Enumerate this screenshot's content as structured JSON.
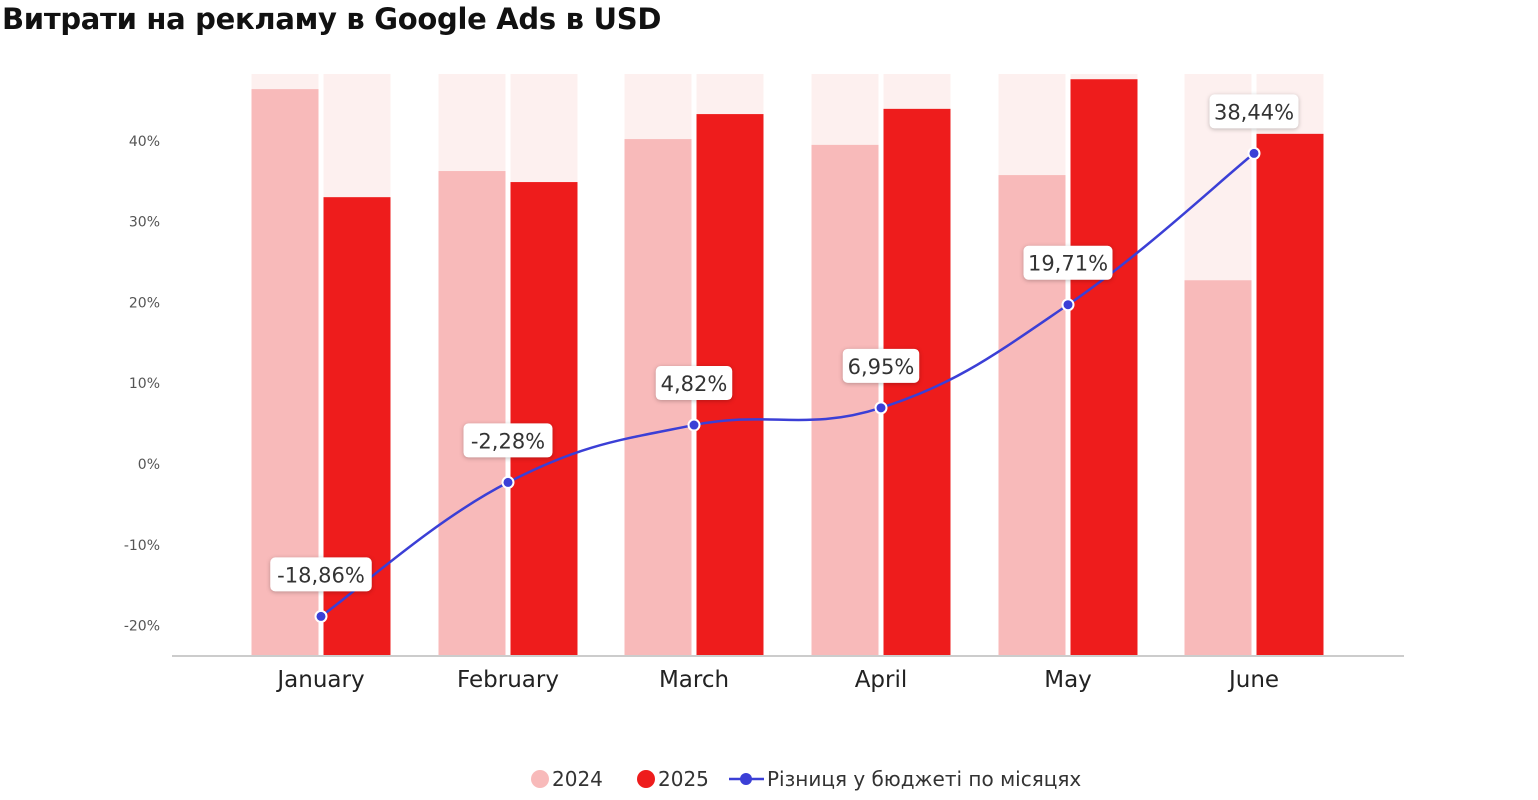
{
  "title": "Витрати на рекламу в Google Ads в USD",
  "chart_data": {
    "type": "bar",
    "title": "Витрати на рекламу в Google Ads в USD",
    "categories": [
      "January",
      "February",
      "March",
      "April",
      "May",
      "June"
    ],
    "series": [
      {
        "name": "2024",
        "type": "bar",
        "color": "#f8baba",
        "relative_values": [
          0.974,
          0.833,
          0.888,
          0.878,
          0.826,
          0.645
        ]
      },
      {
        "name": "2025",
        "type": "bar",
        "color": "#ee1c1c",
        "relative_values": [
          0.788,
          0.814,
          0.931,
          0.94,
          0.991,
          0.897
        ]
      },
      {
        "name": "Різниця у бюджеті по місяцях",
        "type": "line",
        "color": "#3b3fd6",
        "values": [
          -18.86,
          -2.28,
          4.82,
          6.95,
          19.71,
          38.44
        ],
        "labels": [
          "-18,86%",
          "-2,28%",
          "4,82%",
          "6,95%",
          "19,71%",
          "38,44%"
        ]
      }
    ],
    "bar_background_color": "#fdf0ef",
    "y_ticks": [
      "40%",
      "30%",
      "20%",
      "10%",
      "0%",
      "-10%",
      "-20%"
    ],
    "y_tick_values": [
      40,
      30,
      20,
      10,
      0,
      -10,
      -20
    ],
    "ylim": [
      -23.6,
      48.3
    ],
    "grid": false,
    "legend": "bottom-center"
  }
}
